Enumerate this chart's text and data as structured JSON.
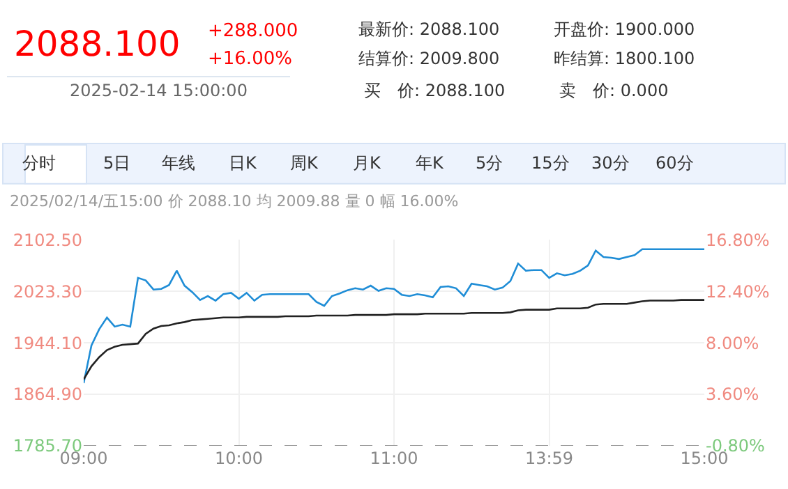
{
  "chart_data": [
    {
      "type": "other",
      "annotations": [
        "2088.100",
        "+288.000",
        "+16.00%",
        "2025-02-14 15:00:00",
        "最新价: 2088.100",
        "开盘价: 1900.000",
        "结算价: 2009.800",
        "昨结算: 1800.100",
        "买　价: 2088.100",
        "卖　价: 0.000",
        "分时",
        "5日",
        "年线",
        "日K",
        "周K",
        "月K",
        "年K",
        "5分",
        "15分",
        "30分",
        "60分"
      ]
    },
    {
      "type": "line",
      "title": "2025/02/14/五15:00 价 2088.10 均 2009.88 量 0 幅 16.00%",
      "categories": [
        "09:00",
        null,
        null,
        null,
        null,
        null,
        null,
        null,
        null,
        null,
        null,
        null,
        null,
        null,
        null,
        null,
        null,
        null,
        null,
        null,
        "10:00",
        null,
        null,
        null,
        null,
        null,
        null,
        null,
        null,
        null,
        null,
        null,
        null,
        null,
        null,
        null,
        null,
        null,
        null,
        null,
        "11:00",
        null,
        null,
        null,
        null,
        null,
        null,
        null,
        null,
        null,
        null,
        null,
        null,
        null,
        null,
        null,
        null,
        null,
        null,
        null,
        "13:59",
        null,
        null,
        null,
        null,
        null,
        null,
        null,
        null,
        null,
        null,
        null,
        null,
        null,
        null,
        null,
        null,
        null,
        null,
        null,
        "15:00"
      ],
      "series": [
        {
          "color": "#1f8dd6",
          "values": [
            1882,
            1940,
            1965,
            1983,
            1969,
            1972,
            1969,
            2044,
            2040,
            2026,
            2027,
            2033,
            2055,
            2032,
            2022,
            2010,
            2016,
            2009,
            2019,
            2021,
            2012,
            2021,
            2009,
            2018,
            2019,
            2019,
            2019,
            2019,
            2019,
            2019,
            2007,
            2001,
            2016,
            2020,
            2025,
            2028,
            2026,
            2032,
            2024,
            2028,
            2027,
            2018,
            2016,
            2019,
            2017,
            2014,
            2030,
            2031,
            2028,
            2016,
            2035,
            2033,
            2031,
            2026,
            2029,
            2039,
            2066,
            2055,
            2056,
            2056,
            2044,
            2051,
            2048,
            2050,
            2055,
            2063,
            2086,
            2076,
            2075,
            2073,
            2076,
            2079,
            2088,
            2088,
            2088,
            2088,
            2088,
            2088,
            2088,
            2088,
            2088
          ]
        },
        {
          "color": "#222222",
          "values": [
            1888,
            1908,
            1922,
            1933,
            1938,
            1941,
            1942,
            1943,
            1958,
            1966,
            1970,
            1971,
            1974,
            1976,
            1979,
            1980,
            1981,
            1982,
            1983,
            1983,
            1983,
            1984,
            1984,
            1984,
            1984,
            1984,
            1985,
            1985,
            1985,
            1985,
            1986,
            1986,
            1986,
            1986,
            1986,
            1987,
            1987,
            1987,
            1987,
            1987,
            1988,
            1988,
            1988,
            1988,
            1989,
            1989,
            1989,
            1989,
            1989,
            1989,
            1990,
            1990,
            1990,
            1990,
            1990,
            1991,
            1994,
            1995,
            1995,
            1995,
            1995,
            1997,
            1997,
            1997,
            1997,
            1998,
            2003,
            2004,
            2004,
            2004,
            2004,
            2006,
            2008,
            2009,
            2009,
            2009,
            2009,
            2010,
            2010,
            2010,
            2010
          ]
        }
      ],
      "ylim": [
        1785.7,
        2102.5
      ],
      "yticks": [
        {
          "value": 1785.7,
          "label": "1785.70"
        },
        {
          "value": 1864.9,
          "label": "1864.90"
        },
        {
          "value": 1944.1,
          "label": "1944.10"
        },
        {
          "value": 2023.3,
          "label": "2023.30"
        },
        {
          "value": 2102.5,
          "label": "2102.50"
        }
      ],
      "y2lim": [
        -0.8,
        16.8
      ],
      "y2ticks": [
        {
          "value": -0.8,
          "label": "-0.80%"
        },
        {
          "value": 3.6,
          "label": "3.60%"
        },
        {
          "value": 8.0,
          "label": "8.00%"
        },
        {
          "value": 12.4,
          "label": "12.40%"
        },
        {
          "value": 16.8,
          "label": "16.80%"
        }
      ],
      "ref_lines": [
        {
          "axis": "y",
          "value": 1785.7,
          "color": "#999999",
          "line_style": "dashed"
        }
      ],
      "grid": true,
      "legend": false,
      "marker": "none",
      "line_style": "solid"
    }
  ]
}
